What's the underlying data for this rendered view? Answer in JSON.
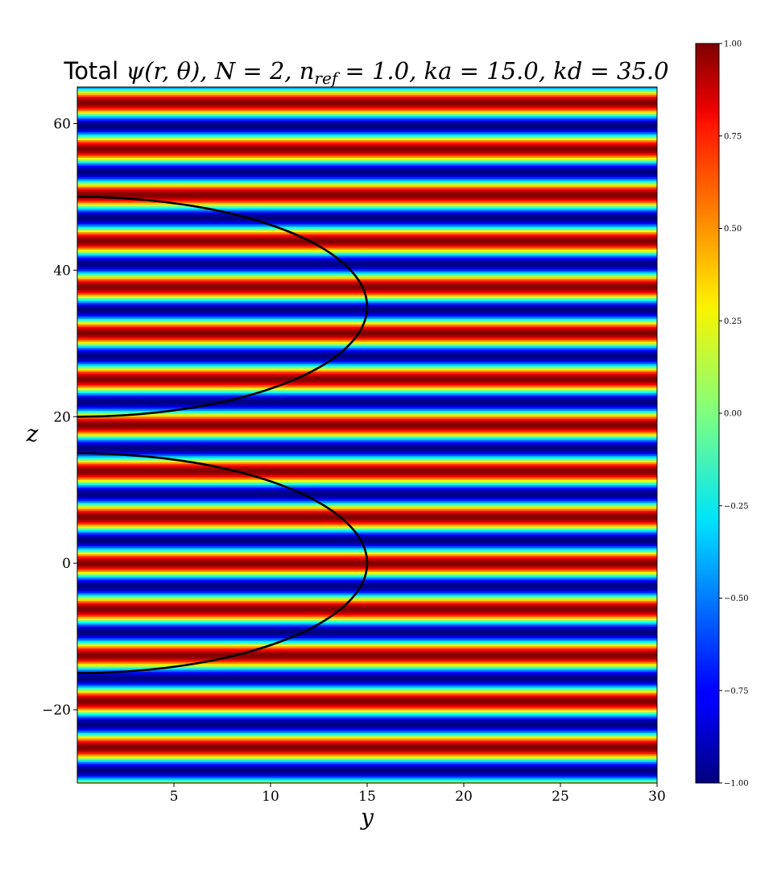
{
  "chart_data": {
    "type": "heatmap",
    "title": {
      "prefix": "Total ",
      "expr": "ψ(r, θ), N = 2, n",
      "sub": "ref",
      "rest": " = 1.0, ka = 15.0, kd = 35.0"
    },
    "xlabel": "y",
    "ylabel": "z",
    "xlim": [
      0,
      30
    ],
    "ylim": [
      -30,
      65
    ],
    "x_ticks": [
      5,
      10,
      15,
      20,
      25,
      30
    ],
    "x_tick_labels": [
      "5",
      "10",
      "15",
      "20",
      "25",
      "30"
    ],
    "y_ticks": [
      -20,
      0,
      20,
      40,
      60
    ],
    "y_tick_labels": [
      "−20",
      "0",
      "20",
      "40",
      "60"
    ],
    "colormap": "jet",
    "field": {
      "description_values": "Re(exp(i k z)) standing-wave stripes along z",
      "wavelength_z": 6.2832,
      "phase_offset": 0.0
    },
    "colorbar": {
      "range": [
        -1.0,
        1.0
      ],
      "ticks": [
        1.0,
        0.75,
        0.5,
        0.25,
        0.0,
        -0.25,
        -0.5,
        -0.75,
        -1.0
      ],
      "tick_labels": [
        "1.00",
        "0.75",
        "0.50",
        "0.25",
        "0.00",
        "−0.25",
        "−0.50",
        "−0.75",
        "−1.00"
      ]
    },
    "spheres": [
      {
        "center_z": 0,
        "radius": 15
      },
      {
        "center_z": 35,
        "radius": 15
      }
    ],
    "grid": false,
    "legend": "none"
  }
}
